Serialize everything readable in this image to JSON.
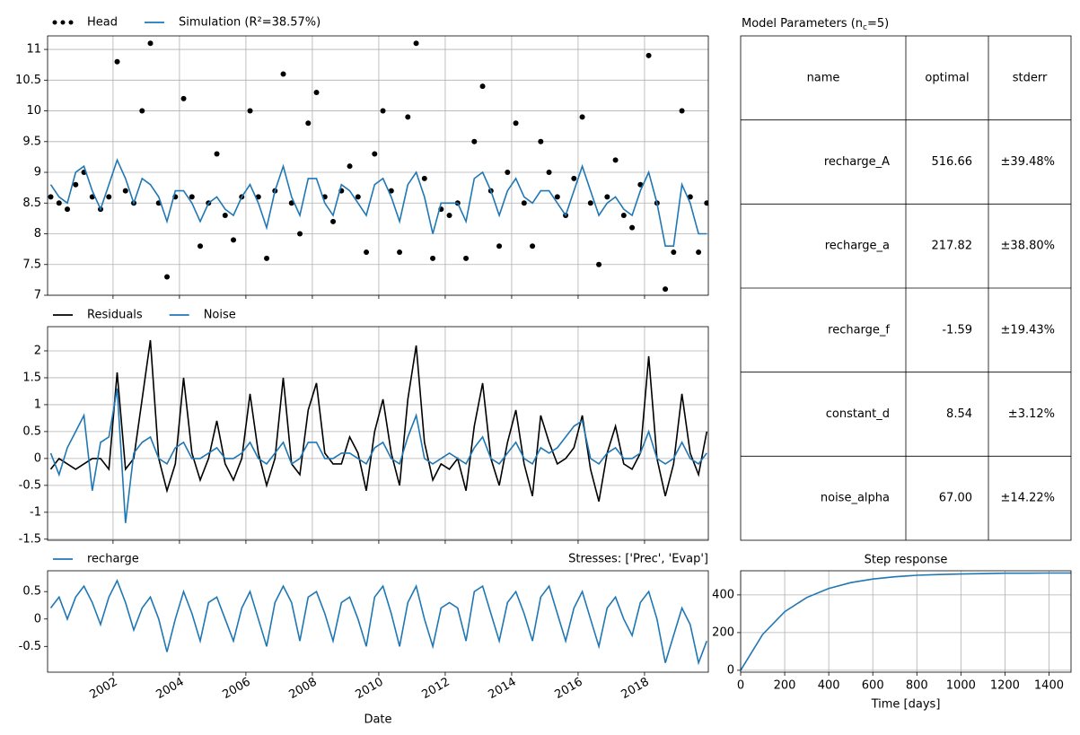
{
  "chart_data": [
    {
      "type": "line",
      "x": [
        2000.125,
        2000.375,
        2000.625,
        2000.875,
        2001.125,
        2001.375,
        2001.625,
        2001.875,
        2002.125,
        2002.375,
        2002.625,
        2002.875,
        2003.125,
        2003.375,
        2003.625,
        2003.875,
        2004.125,
        2004.375,
        2004.625,
        2004.875,
        2005.125,
        2005.375,
        2005.625,
        2005.875,
        2006.125,
        2006.375,
        2006.625,
        2006.875,
        2007.125,
        2007.375,
        2007.625,
        2007.875,
        2008.125,
        2008.375,
        2008.625,
        2008.875,
        2009.125,
        2009.375,
        2009.625,
        2009.875,
        2010.125,
        2010.375,
        2010.625,
        2010.875,
        2011.125,
        2011.375,
        2011.625,
        2011.875,
        2012.125,
        2012.375,
        2012.625,
        2012.875,
        2013.125,
        2013.375,
        2013.625,
        2013.875,
        2014.125,
        2014.375,
        2014.625,
        2014.875,
        2015.125,
        2015.375,
        2015.625,
        2015.875,
        2016.125,
        2016.375,
        2016.625,
        2016.875,
        2017.125,
        2017.375,
        2017.625,
        2017.875,
        2018.125,
        2018.375,
        2018.625,
        2018.875,
        2019.125,
        2019.375,
        2019.625,
        2019.875
      ],
      "series": [
        {
          "name": "Head",
          "color": "#000000",
          "marker": "dots",
          "values": [
            8.6,
            8.5,
            8.4,
            8.8,
            9.0,
            8.6,
            8.4,
            8.6,
            10.8,
            8.7,
            8.5,
            10.0,
            11.1,
            8.5,
            7.3,
            8.6,
            10.2,
            8.6,
            7.8,
            8.5,
            9.3,
            8.3,
            7.9,
            8.6,
            10.0,
            8.6,
            7.6,
            8.7,
            10.6,
            8.5,
            8.0,
            9.8,
            10.3,
            8.6,
            8.2,
            8.7,
            9.1,
            8.6,
            7.7,
            9.3,
            10.0,
            8.7,
            7.7,
            9.9,
            11.1,
            8.9,
            7.6,
            8.4,
            8.3,
            8.5,
            7.6,
            9.5,
            10.4,
            8.7,
            7.8,
            9.0,
            9.8,
            8.5,
            7.8,
            9.5,
            9.0,
            8.6,
            8.3,
            8.9,
            9.9,
            8.5,
            7.5,
            8.6,
            9.2,
            8.3,
            8.1,
            8.8,
            10.9,
            8.5,
            7.1,
            7.7,
            10.0,
            8.6,
            7.7,
            8.5
          ]
        },
        {
          "name": "Simulation (R²=38.57%)",
          "color": "#1f77b4",
          "values": [
            8.8,
            8.6,
            8.5,
            9.0,
            9.1,
            8.7,
            8.4,
            8.8,
            9.2,
            8.9,
            8.5,
            8.9,
            8.8,
            8.6,
            8.2,
            8.7,
            8.7,
            8.5,
            8.2,
            8.5,
            8.6,
            8.4,
            8.3,
            8.6,
            8.8,
            8.5,
            8.1,
            8.7,
            9.1,
            8.6,
            8.3,
            8.9,
            8.9,
            8.5,
            8.3,
            8.8,
            8.7,
            8.5,
            8.3,
            8.8,
            8.9,
            8.6,
            8.2,
            8.8,
            9.0,
            8.6,
            8.0,
            8.5,
            8.5,
            8.5,
            8.2,
            8.9,
            9.0,
            8.7,
            8.3,
            8.7,
            8.9,
            8.6,
            8.5,
            8.7,
            8.7,
            8.5,
            8.3,
            8.7,
            9.1,
            8.7,
            8.3,
            8.5,
            8.6,
            8.4,
            8.3,
            8.7,
            9.0,
            8.5,
            7.8,
            7.8,
            8.8,
            8.5,
            8.0,
            8.0
          ]
        }
      ],
      "xlim": [
        2000.03,
        2019.92
      ],
      "xticks": [
        2002,
        2004,
        2006,
        2008,
        2010,
        2012,
        2014,
        2016,
        2018
      ],
      "ylim": [
        7.0,
        11.22
      ],
      "yticks": [
        7.0,
        7.5,
        8.0,
        8.5,
        9.0,
        9.5,
        10.0,
        10.5,
        11.0
      ],
      "grid": true,
      "legend": "top-left",
      "show_xtick_labels": false
    },
    {
      "type": "line",
      "x": [
        2000.125,
        2000.375,
        2000.625,
        2000.875,
        2001.125,
        2001.375,
        2001.625,
        2001.875,
        2002.125,
        2002.375,
        2002.625,
        2002.875,
        2003.125,
        2003.375,
        2003.625,
        2003.875,
        2004.125,
        2004.375,
        2004.625,
        2004.875,
        2005.125,
        2005.375,
        2005.625,
        2005.875,
        2006.125,
        2006.375,
        2006.625,
        2006.875,
        2007.125,
        2007.375,
        2007.625,
        2007.875,
        2008.125,
        2008.375,
        2008.625,
        2008.875,
        2009.125,
        2009.375,
        2009.625,
        2009.875,
        2010.125,
        2010.375,
        2010.625,
        2010.875,
        2011.125,
        2011.375,
        2011.625,
        2011.875,
        2012.125,
        2012.375,
        2012.625,
        2012.875,
        2013.125,
        2013.375,
        2013.625,
        2013.875,
        2014.125,
        2014.375,
        2014.625,
        2014.875,
        2015.125,
        2015.375,
        2015.625,
        2015.875,
        2016.125,
        2016.375,
        2016.625,
        2016.875,
        2017.125,
        2017.375,
        2017.625,
        2017.875,
        2018.125,
        2018.375,
        2018.625,
        2018.875,
        2019.125,
        2019.375,
        2019.625,
        2019.875
      ],
      "series": [
        {
          "name": "Residuals",
          "color": "#000000",
          "values": [
            -0.2,
            0.0,
            -0.1,
            -0.2,
            -0.1,
            0.0,
            0.0,
            -0.2,
            1.6,
            -0.2,
            0.0,
            1.1,
            2.2,
            0.0,
            -0.6,
            -0.1,
            1.5,
            0.1,
            -0.4,
            0.0,
            0.7,
            -0.1,
            -0.4,
            0.0,
            1.2,
            0.1,
            -0.5,
            0.0,
            1.5,
            -0.1,
            -0.3,
            0.9,
            1.4,
            0.1,
            -0.1,
            -0.1,
            0.4,
            0.1,
            -0.6,
            0.5,
            1.1,
            0.1,
            -0.5,
            1.1,
            2.1,
            0.3,
            -0.4,
            -0.1,
            -0.2,
            0.0,
            -0.6,
            0.6,
            1.4,
            0.0,
            -0.5,
            0.3,
            0.9,
            -0.1,
            -0.7,
            0.8,
            0.3,
            -0.1,
            0.0,
            0.2,
            0.8,
            -0.2,
            -0.8,
            0.1,
            0.6,
            -0.1,
            -0.2,
            0.1,
            1.9,
            0.0,
            -0.7,
            -0.1,
            1.2,
            0.1,
            -0.3,
            0.5
          ]
        },
        {
          "name": "Noise",
          "color": "#1f77b4",
          "values": [
            0.1,
            -0.3,
            0.2,
            0.5,
            0.8,
            -0.6,
            0.3,
            0.4,
            1.3,
            -1.2,
            0.1,
            0.3,
            0.4,
            0.0,
            -0.1,
            0.2,
            0.3,
            0.0,
            0.0,
            0.1,
            0.2,
            0.0,
            0.0,
            0.1,
            0.3,
            0.0,
            -0.1,
            0.1,
            0.3,
            -0.1,
            0.0,
            0.3,
            0.3,
            0.0,
            0.0,
            0.1,
            0.1,
            0.0,
            -0.1,
            0.2,
            0.3,
            0.0,
            -0.1,
            0.4,
            0.8,
            0.0,
            -0.1,
            0.0,
            0.1,
            0.0,
            -0.1,
            0.2,
            0.4,
            0.0,
            -0.1,
            0.1,
            0.3,
            0.0,
            -0.1,
            0.2,
            0.1,
            0.2,
            0.4,
            0.6,
            0.7,
            0.0,
            -0.1,
            0.1,
            0.2,
            0.0,
            0.0,
            0.1,
            0.5,
            0.0,
            -0.1,
            0.0,
            0.3,
            0.0,
            -0.1,
            0.1
          ]
        }
      ],
      "xlim": [
        2000.03,
        2019.92
      ],
      "xticks": [
        2002,
        2004,
        2006,
        2008,
        2010,
        2012,
        2014,
        2016,
        2018
      ],
      "ylim": [
        -1.52,
        2.45
      ],
      "yticks": [
        -1.5,
        -1.0,
        -0.5,
        0.0,
        0.5,
        1.0,
        1.5,
        2.0
      ],
      "grid": true,
      "legend": "top-left",
      "show_xtick_labels": false
    },
    {
      "type": "line",
      "x": [
        2000.125,
        2000.375,
        2000.625,
        2000.875,
        2001.125,
        2001.375,
        2001.625,
        2001.875,
        2002.125,
        2002.375,
        2002.625,
        2002.875,
        2003.125,
        2003.375,
        2003.625,
        2003.875,
        2004.125,
        2004.375,
        2004.625,
        2004.875,
        2005.125,
        2005.375,
        2005.625,
        2005.875,
        2006.125,
        2006.375,
        2006.625,
        2006.875,
        2007.125,
        2007.375,
        2007.625,
        2007.875,
        2008.125,
        2008.375,
        2008.625,
        2008.875,
        2009.125,
        2009.375,
        2009.625,
        2009.875,
        2010.125,
        2010.375,
        2010.625,
        2010.875,
        2011.125,
        2011.375,
        2011.625,
        2011.875,
        2012.125,
        2012.375,
        2012.625,
        2012.875,
        2013.125,
        2013.375,
        2013.625,
        2013.875,
        2014.125,
        2014.375,
        2014.625,
        2014.875,
        2015.125,
        2015.375,
        2015.625,
        2015.875,
        2016.125,
        2016.375,
        2016.625,
        2016.875,
        2017.125,
        2017.375,
        2017.625,
        2017.875,
        2018.125,
        2018.375,
        2018.625,
        2018.875,
        2019.125,
        2019.375,
        2019.625,
        2019.875
      ],
      "series": [
        {
          "name": "recharge",
          "color": "#1f77b4",
          "values": [
            0.2,
            0.4,
            0.0,
            0.4,
            0.6,
            0.3,
            -0.1,
            0.4,
            0.7,
            0.3,
            -0.2,
            0.2,
            0.4,
            0.0,
            -0.6,
            0.0,
            0.5,
            0.1,
            -0.4,
            0.3,
            0.4,
            0.0,
            -0.4,
            0.2,
            0.5,
            0.0,
            -0.5,
            0.3,
            0.6,
            0.3,
            -0.4,
            0.4,
            0.5,
            0.1,
            -0.4,
            0.3,
            0.4,
            0.0,
            -0.5,
            0.4,
            0.6,
            0.1,
            -0.5,
            0.3,
            0.6,
            0.0,
            -0.5,
            0.2,
            0.3,
            0.2,
            -0.4,
            0.5,
            0.6,
            0.1,
            -0.4,
            0.3,
            0.5,
            0.1,
            -0.4,
            0.4,
            0.6,
            0.1,
            -0.4,
            0.2,
            0.5,
            0.0,
            -0.5,
            0.2,
            0.4,
            0.0,
            -0.3,
            0.3,
            0.5,
            0.0,
            -0.8,
            -0.3,
            0.2,
            -0.1,
            -0.8,
            -0.4
          ]
        }
      ],
      "title_right": "Stresses: ['Prec', 'Evap']",
      "xlabel": "Date",
      "xlim": [
        2000.03,
        2019.92
      ],
      "xticks": [
        2002,
        2004,
        2006,
        2008,
        2010,
        2012,
        2014,
        2016,
        2018
      ],
      "ylim": [
        -0.97,
        0.88
      ],
      "yticks": [
        -0.5,
        0.0,
        0.5
      ],
      "grid": false,
      "legend": "top-left",
      "show_xtick_labels": true,
      "xtick_rotation": 30
    },
    {
      "type": "line",
      "title": "Step response",
      "xlabel": "Time [days]",
      "x": [
        0,
        100,
        200,
        300,
        400,
        500,
        600,
        700,
        800,
        900,
        1000,
        1100,
        1200,
        1300,
        1400,
        1500
      ],
      "series": [
        {
          "color": "#1f77b4",
          "values": [
            0,
            190,
            311,
            386,
            434,
            465,
            484,
            496,
            504,
            508,
            511,
            513,
            515,
            515,
            516,
            516
          ]
        }
      ],
      "xlim": [
        0,
        1500
      ],
      "xticks": [
        0,
        200,
        400,
        600,
        800,
        1000,
        1200,
        1400
      ],
      "ylim": [
        -10,
        528
      ],
      "yticks": [
        0,
        200,
        400
      ],
      "grid": true,
      "show_xtick_labels": true
    }
  ],
  "table": {
    "title": {
      "text": "Model Parameters (n",
      "sub": "c",
      "tail": "=5)"
    },
    "columns": [
      "name",
      "optimal",
      "stderr"
    ],
    "rows": [
      [
        "recharge_A",
        "516.66",
        "±39.48%"
      ],
      [
        "recharge_a",
        "217.82",
        "±38.80%"
      ],
      [
        "recharge_f",
        "-1.59",
        "±19.43%"
      ],
      [
        "constant_d",
        "8.54",
        "±3.12%"
      ],
      [
        "noise_alpha",
        "67.00",
        "±14.22%"
      ]
    ]
  }
}
